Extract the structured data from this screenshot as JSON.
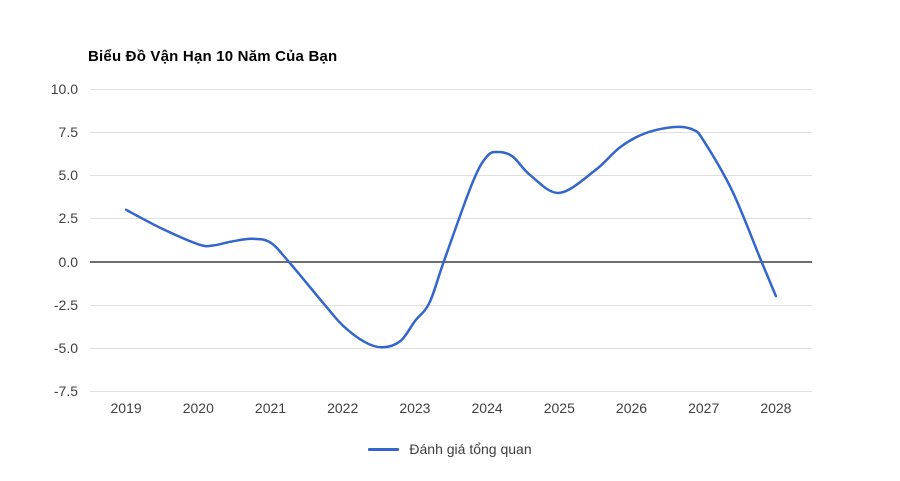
{
  "chart": {
    "title": "Biểu Đồ Vận Hạn 10 Năm Của Bạn",
    "legend_label": "Đánh giá tổng quan"
  },
  "chart_data": {
    "type": "line",
    "title": "Biểu Đồ Vận Hạn 10 Năm Của Bạn",
    "categories": [
      "2019",
      "2020",
      "2021",
      "2022",
      "2023",
      "2024",
      "2025",
      "2026",
      "2027",
      "2028"
    ],
    "series": [
      {
        "name": "Đánh giá tổng quan",
        "values": [
          3,
          1,
          1,
          -3.5,
          -3.5,
          6,
          4,
          7,
          7,
          -2
        ],
        "color": "#3366cc"
      }
    ],
    "curve_samples": [
      [
        2019.0,
        3.0
      ],
      [
        2019.5,
        1.9
      ],
      [
        2020.0,
        1.0
      ],
      [
        2020.2,
        0.93
      ],
      [
        2020.45,
        1.15
      ],
      [
        2020.75,
        1.32
      ],
      [
        2021.0,
        1.1
      ],
      [
        2021.25,
        0.0
      ],
      [
        2021.75,
        -2.5
      ],
      [
        2022.0,
        -3.7
      ],
      [
        2022.3,
        -4.65
      ],
      [
        2022.55,
        -4.97
      ],
      [
        2022.8,
        -4.6
      ],
      [
        2023.0,
        -3.45
      ],
      [
        2023.2,
        -2.4
      ],
      [
        2023.4,
        0.0
      ],
      [
        2023.8,
        4.6
      ],
      [
        2024.0,
        6.1
      ],
      [
        2024.15,
        6.35
      ],
      [
        2024.35,
        6.1
      ],
      [
        2024.6,
        5.0
      ],
      [
        2025.0,
        3.98
      ],
      [
        2025.5,
        5.3
      ],
      [
        2025.85,
        6.65
      ],
      [
        2026.2,
        7.45
      ],
      [
        2026.6,
        7.8
      ],
      [
        2026.85,
        7.65
      ],
      [
        2027.0,
        7.0
      ],
      [
        2027.4,
        4.05
      ],
      [
        2027.8,
        0.0
      ],
      [
        2028.0,
        -2.0
      ]
    ],
    "ylim": [
      -7.5,
      10.0
    ],
    "ytick_labels": [
      "10.0",
      "7.5",
      "5.0",
      "2.5",
      "0.0",
      "-2.5",
      "-5.0",
      "-7.5"
    ],
    "zero_baseline": 0.0,
    "grid": "horizontal-only",
    "legend_position": "bottom",
    "xlabel": "",
    "ylabel": "",
    "colors": {
      "line": "#3366cc",
      "grid": "#e0e0e0",
      "zero_line": "#6e6e6e",
      "tick_label": "#404040",
      "legend_text": "#3d3d3d",
      "title": "#000000",
      "background": "#ffffff"
    }
  }
}
